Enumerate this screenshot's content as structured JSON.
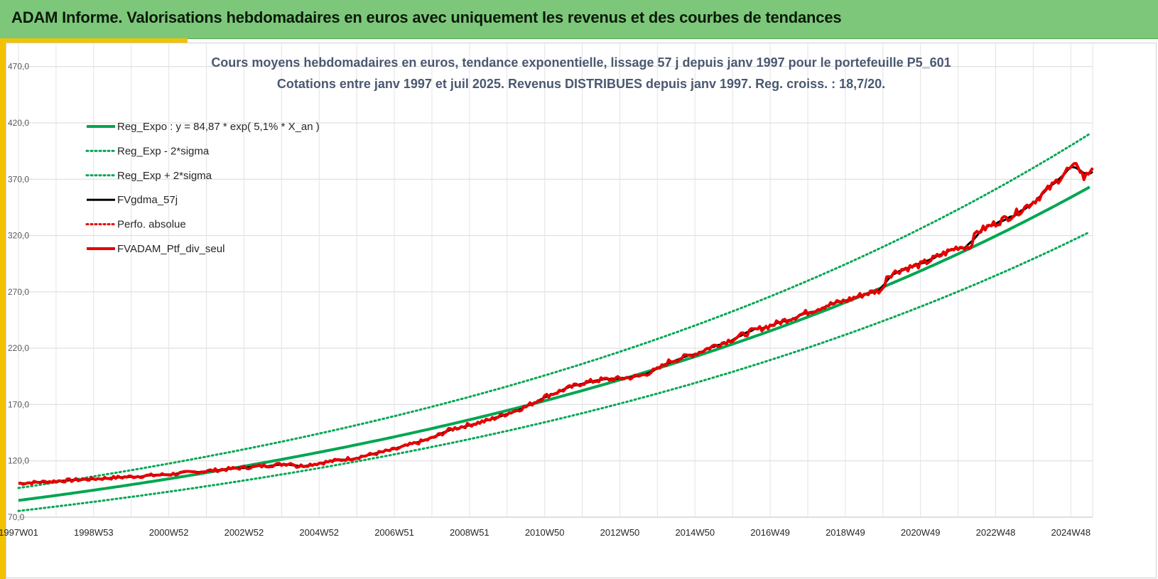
{
  "header": {
    "title": "ADAM Informe. Valorisations hebdomadaires en euros avec uniquement les revenus et des courbes de tendances"
  },
  "colors": {
    "header_bg": "#7dc77a",
    "accent": "#f2c200",
    "trend": "#00a651",
    "red": "#e60000",
    "black": "#000000"
  },
  "chart_data": {
    "type": "line",
    "title_lines": [
      "Cours moyens hebdomadaires  en euros, tendance exponentielle, lissage 57 j depuis janv 1997 pour le portefeuille P5_601",
      "Cotations entre janv 1997 et juil 2025. Revenus DISTRIBUES depuis janv 1997. Reg. croiss. : 18,7/20."
    ],
    "xlabel": "",
    "ylabel": "",
    "ylim": [
      70,
      490
    ],
    "y_ticks": [
      "70,0",
      "120,0",
      "170,0",
      "220,0",
      "270,0",
      "320,0",
      "370,0",
      "420,0",
      "470,0"
    ],
    "x_tick_labels": [
      "1997W01",
      "1998W53",
      "2000W52",
      "2002W52",
      "2004W52",
      "2006W51",
      "2008W51",
      "2010W50",
      "2012W50",
      "2014W50",
      "2016W49",
      "2018W49",
      "2020W49",
      "2022W48",
      "2024W48"
    ],
    "x_ticks_year": [
      1997.0,
      1999.0,
      2001.0,
      2003.0,
      2005.0,
      2007.0,
      2009.0,
      2011.0,
      2013.0,
      2015.0,
      2017.0,
      2019.0,
      2021.0,
      2023.0,
      2025.0
    ],
    "x_range_year": [
      1997.0,
      2025.58
    ],
    "grid": true,
    "legend_placement": "top-left",
    "trend": {
      "a": 84.87,
      "rate": 0.051,
      "lower_factor": 0.89,
      "upper_factor": 1.13
    },
    "series": [
      {
        "name": "Reg_Expo : y = 84,87 * exp( 5,1% *  X_an )",
        "color": "#00a651",
        "style": "solid-thick",
        "kind": "trend"
      },
      {
        "name": "Reg_Exp - 2*sigma",
        "color": "#00a651",
        "style": "dotted",
        "kind": "lower"
      },
      {
        "name": "Reg_Exp + 2*sigma",
        "color": "#00a651",
        "style": "dotted",
        "kind": "upper"
      },
      {
        "name": "FVgdma_57j",
        "color": "#000000",
        "style": "solid",
        "kind": "smooth"
      },
      {
        "name": "Perfo. absolue",
        "color": "#e60000",
        "style": "dotted",
        "kind": "perf"
      },
      {
        "name": "FVADAM_Ptf_div_seul",
        "color": "#e60000",
        "style": "solid-thick",
        "kind": "portfolio"
      }
    ],
    "portfolio_points": {
      "x": [
        1997.0,
        1998.0,
        1999.0,
        2000.0,
        2001.0,
        2002.0,
        2003.0,
        2004.0,
        2004.3,
        2004.4,
        2005.0,
        2006.0,
        2007.0,
        2008.0,
        2008.5,
        2009.0,
        2009.5,
        2010.0,
        2010.5,
        2011.0,
        2011.5,
        2012.0,
        2012.5,
        2013.0,
        2013.5,
        2014.0,
        2014.3,
        2015.0,
        2015.5,
        2016.0,
        2016.5,
        2017.0,
        2017.5,
        2018.0,
        2018.5,
        2019.0,
        2019.5,
        2020.0,
        2020.1,
        2020.5,
        2021.0,
        2021.5,
        2022.0,
        2022.3,
        2022.5,
        2023.0,
        2023.5,
        2024.0,
        2024.5,
        2024.9,
        2025.2,
        2025.35,
        2025.58
      ],
      "y": [
        100,
        102,
        104,
        106,
        108,
        111,
        114,
        117,
        118,
        115,
        118,
        123,
        130,
        140,
        148,
        152,
        156,
        162,
        168,
        177,
        183,
        189,
        192,
        193,
        195,
        201,
        208,
        215,
        222,
        228,
        235,
        240,
        246,
        252,
        258,
        262,
        268,
        272,
        284,
        290,
        294,
        302,
        310,
        310,
        323,
        331,
        339,
        350,
        364,
        378,
        382,
        371,
        380
      ]
    }
  }
}
